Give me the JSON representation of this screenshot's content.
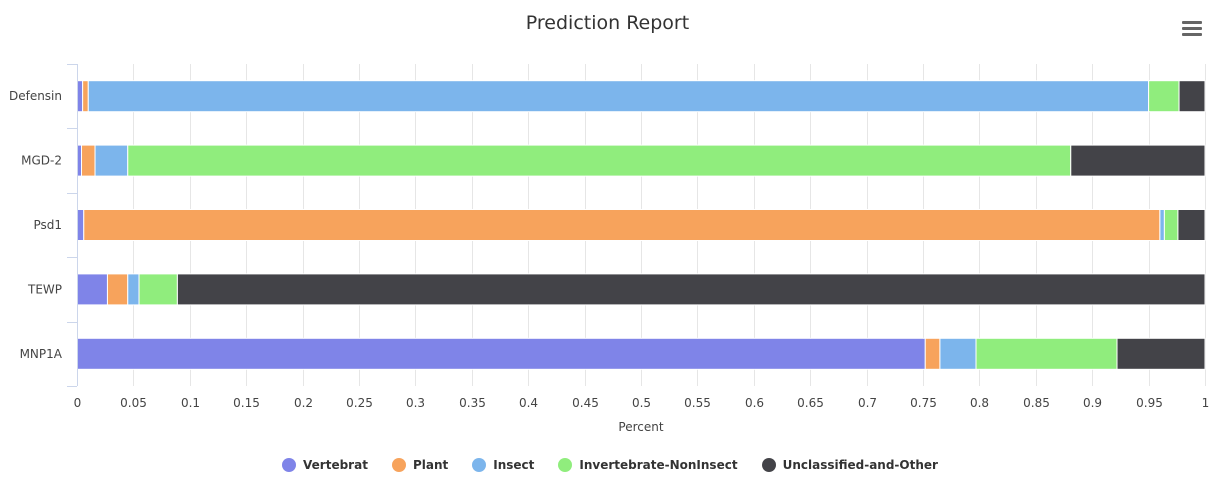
{
  "chart_data": {
    "type": "bar",
    "orientation": "horizontal",
    "stacked": true,
    "title": "Prediction Report",
    "xlabel": "Percent",
    "ylabel": "",
    "xlim": [
      0,
      1
    ],
    "x_ticks": [
      "0",
      "0.05",
      "0.1",
      "0.15",
      "0.2",
      "0.25",
      "0.3",
      "0.35",
      "0.4",
      "0.45",
      "0.5",
      "0.55",
      "0.6",
      "0.65",
      "0.7",
      "0.75",
      "0.8",
      "0.85",
      "0.9",
      "0.95",
      "1"
    ],
    "categories": [
      "Defensin",
      "MGD-2",
      "Psd1",
      "TEWP",
      "MNP1A"
    ],
    "series": [
      {
        "name": "Vertebrat",
        "color": "#7f84e8",
        "values": [
          0.005,
          0.004,
          0.006,
          0.027,
          0.752
        ]
      },
      {
        "name": "Plant",
        "color": "#f7a35c",
        "values": [
          0.005,
          0.012,
          0.954,
          0.018,
          0.013
        ]
      },
      {
        "name": "Insect",
        "color": "#7cb5ec",
        "values": [
          0.94,
          0.029,
          0.004,
          0.01,
          0.032
        ]
      },
      {
        "name": "Invertebrate-NonInsect",
        "color": "#90ed7d",
        "values": [
          0.027,
          0.836,
          0.012,
          0.034,
          0.125
        ]
      },
      {
        "name": "Unclassified-and-Other",
        "color": "#434348",
        "values": [
          0.023,
          0.119,
          0.024,
          0.911,
          0.078
        ]
      }
    ],
    "grid": true,
    "legend_position": "bottom"
  },
  "menu": {
    "icon": "hamburger-menu-icon"
  }
}
